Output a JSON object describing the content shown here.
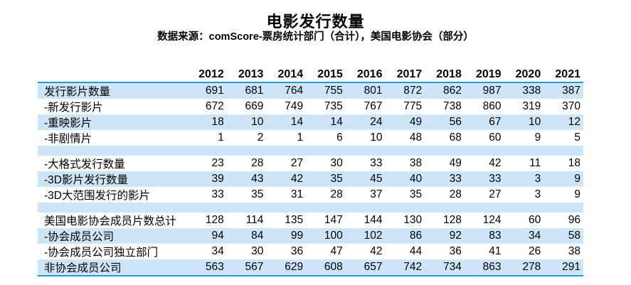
{
  "title": "电影发行数量",
  "subtitle": "数据来源：comScore-票房统计部门（合计），美国电影协会（部分）",
  "colors": {
    "row_highlight": "#cde5f7",
    "table_border_blue": "#1b9ddd",
    "text": "#000000",
    "background": "#ffffff"
  },
  "chart_data": {
    "type": "table",
    "title": "电影发行数量",
    "source": "数据来源：comScore-票房统计部门（合计），美国电影协会（部分）",
    "columns": [
      "2012",
      "2013",
      "2014",
      "2015",
      "2016",
      "2017",
      "2018",
      "2019",
      "2020",
      "2021"
    ],
    "rows": [
      {
        "label": "发行影片数量",
        "values": [
          691,
          681,
          764,
          755,
          801,
          872,
          862,
          987,
          338,
          387
        ],
        "shaded": true,
        "spacer": false
      },
      {
        "label": "-新发行影片",
        "values": [
          672,
          669,
          749,
          735,
          767,
          775,
          738,
          860,
          319,
          370
        ],
        "shaded": false,
        "spacer": false
      },
      {
        "label": "-重映影片",
        "values": [
          18,
          10,
          14,
          14,
          24,
          49,
          56,
          67,
          10,
          12
        ],
        "shaded": true,
        "spacer": false
      },
      {
        "label": "-非剧情片",
        "values": [
          1,
          2,
          1,
          6,
          10,
          48,
          68,
          60,
          9,
          5
        ],
        "shaded": false,
        "spacer": false
      },
      {
        "label": "",
        "values": [],
        "shaded": true,
        "spacer": true
      },
      {
        "label": "-大格式发行数量",
        "values": [
          23,
          28,
          27,
          30,
          33,
          38,
          49,
          42,
          11,
          18
        ],
        "shaded": false,
        "spacer": false
      },
      {
        "label": "-3D影片发行数量",
        "values": [
          39,
          43,
          42,
          35,
          45,
          40,
          33,
          33,
          3,
          9
        ],
        "shaded": true,
        "spacer": false
      },
      {
        "label": "-3D大范围发行的影片",
        "values": [
          33,
          35,
          31,
          28,
          37,
          35,
          28,
          27,
          3,
          9
        ],
        "shaded": false,
        "spacer": false
      },
      {
        "label": "",
        "values": [],
        "shaded": true,
        "spacer": true
      },
      {
        "label": "美国电影协会成员片数总计",
        "values": [
          128,
          114,
          135,
          147,
          144,
          130,
          128,
          124,
          60,
          96
        ],
        "shaded": false,
        "spacer": false
      },
      {
        "label": "-协会成员公司",
        "values": [
          94,
          84,
          99,
          100,
          102,
          86,
          92,
          83,
          34,
          58
        ],
        "shaded": true,
        "spacer": false
      },
      {
        "label": "-协会成员公司独立部门",
        "values": [
          34,
          30,
          36,
          47,
          42,
          44,
          36,
          41,
          26,
          38
        ],
        "shaded": false,
        "spacer": false
      },
      {
        "label": "非协会成员公司",
        "values": [
          563,
          567,
          629,
          608,
          657,
          742,
          734,
          863,
          278,
          291
        ],
        "shaded": true,
        "spacer": false
      }
    ],
    "layout": {
      "legend": "none",
      "grid": "off",
      "header_rule_color": "#1b9ddd",
      "bottom_rule_color": "#1b9ddd",
      "alternating_row_color": "#cde5f7"
    }
  }
}
